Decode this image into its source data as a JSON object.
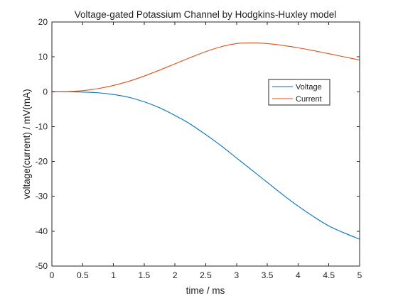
{
  "chart_data": {
    "type": "line",
    "title": "Voltage-gated Potassium Channel by Hodgkins-Huxley model",
    "xlabel": "time / ms",
    "ylabel": "voltage(current) / mV(mA)",
    "xlim": [
      0,
      5
    ],
    "ylim": [
      -50,
      20
    ],
    "grid": false,
    "legend_position": "upper-right",
    "xticks": [
      0,
      0.5,
      1,
      1.5,
      2,
      2.5,
      3,
      3.5,
      4,
      4.5,
      5
    ],
    "xtick_labels": [
      "0",
      "0.5",
      "1",
      "1.5",
      "2",
      "2.5",
      "3",
      "3.5",
      "4",
      "4.5",
      "5"
    ],
    "yticks": [
      -50,
      -40,
      -30,
      -20,
      -10,
      0,
      10,
      20
    ],
    "ytick_labels": [
      "-50",
      "-40",
      "-30",
      "-20",
      "-10",
      "0",
      "10",
      "20"
    ],
    "series": [
      {
        "name": "Voltage",
        "color": "#0072bd",
        "x": [
          0,
          0.25,
          0.5,
          0.75,
          1,
          1.25,
          1.5,
          1.75,
          2,
          2.25,
          2.5,
          2.75,
          3,
          3.25,
          3.5,
          3.75,
          4,
          4.25,
          4.5,
          4.75,
          5
        ],
        "y": [
          0,
          0,
          -0.1,
          -0.3,
          -0.8,
          -1.6,
          -2.9,
          -4.6,
          -6.8,
          -9.3,
          -12.3,
          -15.5,
          -19.0,
          -22.5,
          -26.0,
          -29.5,
          -32.8,
          -35.8,
          -38.5,
          -40.5,
          -42.3
        ]
      },
      {
        "name": "Current",
        "color": "#d95319",
        "x": [
          0,
          0.25,
          0.5,
          0.75,
          1,
          1.25,
          1.5,
          1.75,
          2,
          2.25,
          2.5,
          2.75,
          3,
          3.25,
          3.5,
          3.75,
          4,
          4.25,
          4.5,
          4.75,
          5
        ],
        "y": [
          0,
          0.05,
          0.3,
          0.9,
          1.8,
          3.0,
          4.5,
          6.2,
          8.0,
          9.8,
          11.5,
          12.9,
          13.8,
          14.0,
          13.8,
          13.3,
          12.6,
          11.8,
          10.9,
          10.0,
          9.1
        ]
      }
    ]
  }
}
